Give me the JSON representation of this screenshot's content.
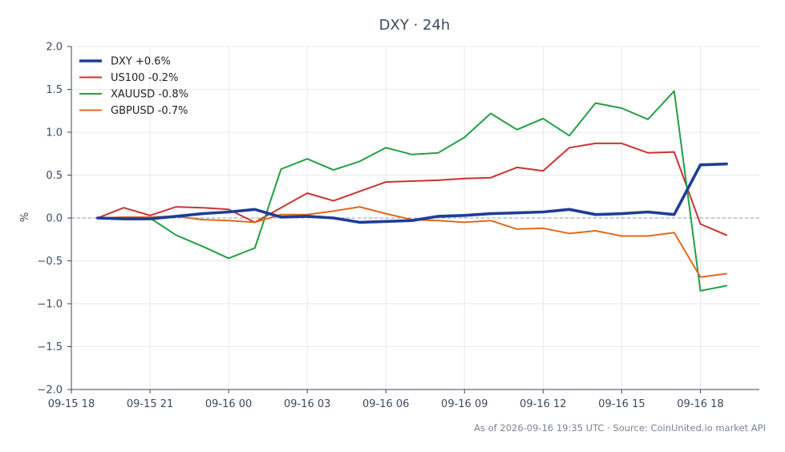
{
  "chart_data": {
    "type": "line",
    "title": "DXY · 24h",
    "ylabel": "%",
    "xlabel": "",
    "ylim": [
      -2.0,
      2.0
    ],
    "yticks": [
      -2.0,
      -1.5,
      -1.0,
      -0.5,
      0.0,
      0.5,
      1.0,
      1.5,
      2.0
    ],
    "ytick_labels": [
      "−2.0",
      "−1.5",
      "−1.0",
      "−0.5",
      "0.0",
      "0.5",
      "1.0",
      "1.5",
      "2.0"
    ],
    "xlim": [
      "09-15 18:00",
      "09-16 20:15"
    ],
    "xtick_labels": [
      "09-15 18",
      "09-15 21",
      "09-16 00",
      "09-16 03",
      "09-16 06",
      "09-16 09",
      "09-16 12",
      "09-16 15",
      "09-16 18"
    ],
    "xtick_times": [
      "09-15 18:00",
      "09-15 21:00",
      "09-16 00:00",
      "09-16 03:00",
      "09-16 06:00",
      "09-16 09:00",
      "09-16 12:00",
      "09-16 15:00",
      "09-16 18:00"
    ],
    "x": [
      "09-15 19:00",
      "09-15 20:00",
      "09-15 21:00",
      "09-15 22:00",
      "09-15 23:00",
      "09-16 00:00",
      "09-16 01:00",
      "09-16 02:00",
      "09-16 03:00",
      "09-16 04:00",
      "09-16 05:00",
      "09-16 06:00",
      "09-16 07:00",
      "09-16 08:00",
      "09-16 09:00",
      "09-16 10:00",
      "09-16 11:00",
      "09-16 12:00",
      "09-16 13:00",
      "09-16 14:00",
      "09-16 15:00",
      "09-16 16:00",
      "09-16 17:00",
      "09-16 18:00",
      "09-16 19:00"
    ],
    "grid": true,
    "zero_line": true,
    "legend_position": "top-left",
    "series": [
      {
        "name": "DXY +0.6%",
        "color": "#1f3d99",
        "emphasis": true,
        "values": [
          0.0,
          -0.01,
          -0.01,
          0.02,
          0.05,
          0.07,
          0.1,
          0.01,
          0.02,
          0.0,
          -0.05,
          -0.04,
          -0.03,
          0.02,
          0.03,
          0.05,
          0.06,
          0.07,
          0.1,
          0.04,
          0.05,
          0.07,
          0.04,
          0.62,
          0.63
        ]
      },
      {
        "name": "US100 -0.2%",
        "color": "#cc3333",
        "emphasis": false,
        "values": [
          0.0,
          0.12,
          0.03,
          0.13,
          0.12,
          0.1,
          -0.05,
          0.12,
          0.29,
          0.2,
          0.31,
          0.42,
          0.43,
          0.44,
          0.46,
          0.47,
          0.59,
          0.55,
          0.82,
          0.87,
          0.87,
          0.76,
          0.77,
          -0.07,
          -0.2
        ]
      },
      {
        "name": "XAUUSD -0.8%",
        "color": "#22a045",
        "emphasis": false,
        "values": [
          0.0,
          -0.01,
          0.0,
          -0.2,
          -0.33,
          -0.47,
          -0.35,
          0.57,
          0.69,
          0.56,
          0.66,
          0.82,
          0.74,
          0.76,
          0.94,
          1.22,
          1.03,
          1.16,
          0.96,
          1.34,
          1.28,
          1.15,
          1.48,
          -0.85,
          -0.79
        ]
      },
      {
        "name": "GBPUSD -0.7%",
        "color": "#e06a1c",
        "emphasis": false,
        "values": [
          0.0,
          0.01,
          0.01,
          0.02,
          -0.02,
          -0.03,
          -0.05,
          0.04,
          0.04,
          0.08,
          0.13,
          0.05,
          -0.02,
          -0.03,
          -0.05,
          -0.03,
          -0.13,
          -0.12,
          -0.18,
          -0.15,
          -0.21,
          -0.21,
          -0.17,
          -0.69,
          -0.65
        ]
      }
    ]
  },
  "footer": {
    "as_of": "As of 2026-09-16 19:35 UTC · Source: CoinUnited.io market API"
  }
}
